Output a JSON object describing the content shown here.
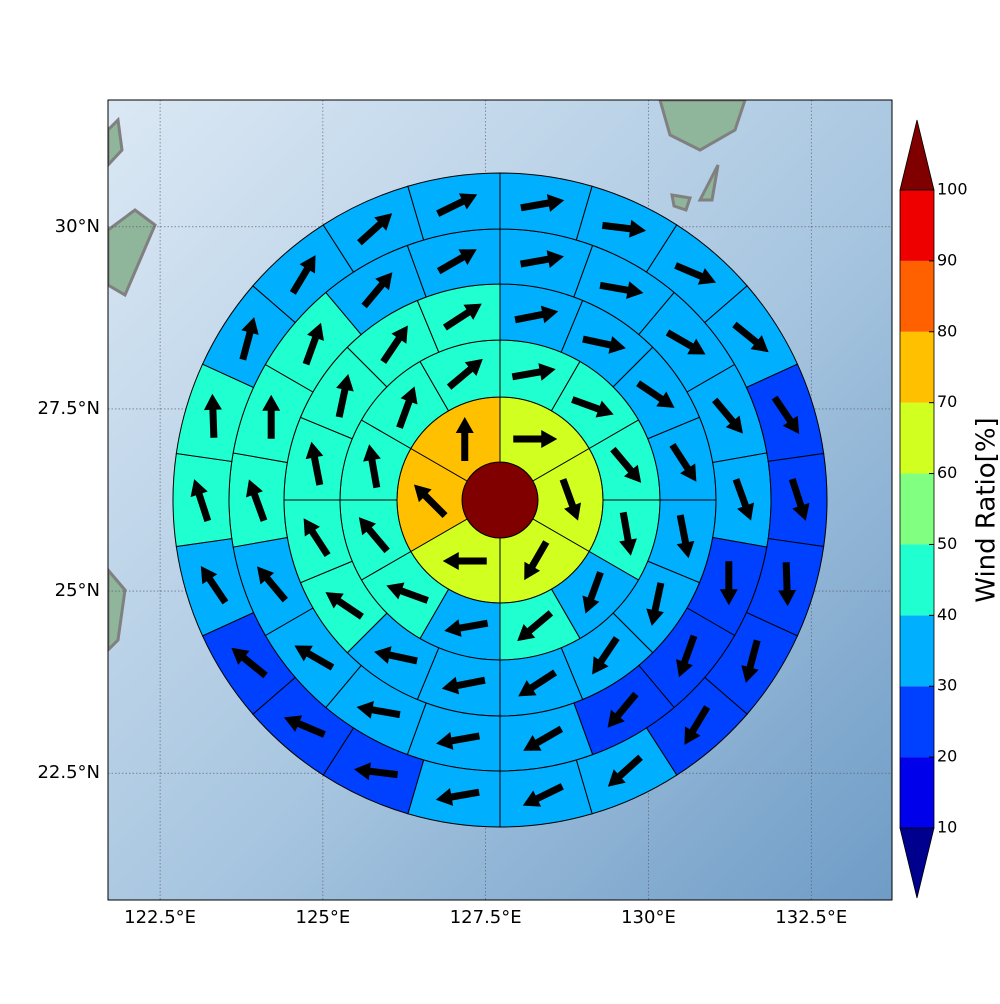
{
  "chart_data": {
    "type": "polar-sectors",
    "x_axis": {
      "xlim": [
        121.7,
        133.74
      ],
      "xticks": [
        {
          "value": 122.5,
          "label": "122.5°E"
        },
        {
          "value": 125,
          "label": "125°E"
        },
        {
          "value": 127.5,
          "label": "127.5°E"
        },
        {
          "value": 130,
          "label": "130°E"
        },
        {
          "value": 132.5,
          "label": "132.5°E"
        }
      ]
    },
    "y_axis": {
      "ylim": [
        20.76,
        31.74
      ],
      "yticks": [
        {
          "value": 22.5,
          "label": "22.5°N"
        },
        {
          "value": 25,
          "label": "25°N"
        },
        {
          "value": 27.5,
          "label": "27.5°N"
        },
        {
          "value": 30,
          "label": "30°N"
        }
      ]
    },
    "grid": true,
    "center": {
      "value": 100
    },
    "rings": [
      {
        "values": [
          65,
          65,
          65,
          65,
          75,
          75
        ],
        "directions": [
          90,
          160,
          210,
          270,
          315,
          0
        ]
      },
      {
        "values": [
          45,
          45,
          45,
          45,
          35,
          45,
          35,
          45,
          45,
          45,
          45,
          45
        ],
        "directions": [
          80,
          110,
          140,
          170,
          200,
          230,
          260,
          290,
          320,
          350,
          20,
          50
        ]
      },
      {
        "values": [
          35,
          35,
          35,
          35,
          35,
          35,
          35,
          35,
          35,
          35,
          45,
          45,
          45,
          45,
          45,
          45
        ],
        "directions": [
          79,
          102,
          124,
          147,
          169,
          192,
          214,
          237,
          259,
          282,
          304,
          327,
          349,
          12,
          34,
          57
        ]
      },
      {
        "values": [
          35,
          35,
          35,
          35,
          35,
          25,
          25,
          25,
          35,
          35,
          35,
          35,
          35,
          45,
          45,
          45,
          35,
          35
        ],
        "directions": [
          80,
          100,
          120,
          140,
          160,
          180,
          200,
          220,
          240,
          260,
          280,
          300,
          320,
          340,
          0,
          20,
          40,
          60
        ]
      },
      {
        "values": [
          35,
          35,
          35,
          35,
          25,
          25,
          25,
          25,
          25,
          35,
          35,
          35,
          25,
          25,
          25,
          35,
          45,
          45,
          35,
          35,
          35,
          35
        ],
        "directions": [
          80,
          97,
          113,
          129,
          146,
          162,
          178,
          195,
          211,
          228,
          244,
          260,
          277,
          293,
          309,
          326,
          342,
          358,
          15,
          31,
          48,
          64
        ]
      }
    ],
    "colorbar": {
      "label": "Wind Ratio[%]",
      "ticks": [
        10,
        20,
        30,
        40,
        50,
        60,
        70,
        80,
        90,
        100
      ],
      "colors": [
        "#00008f",
        "#0000ea",
        "#0040ff",
        "#00b0ff",
        "#20ffd0",
        "#80ff80",
        "#d0ff20",
        "#ffc000",
        "#ff6000",
        "#ee0000",
        "#800000"
      ]
    }
  }
}
